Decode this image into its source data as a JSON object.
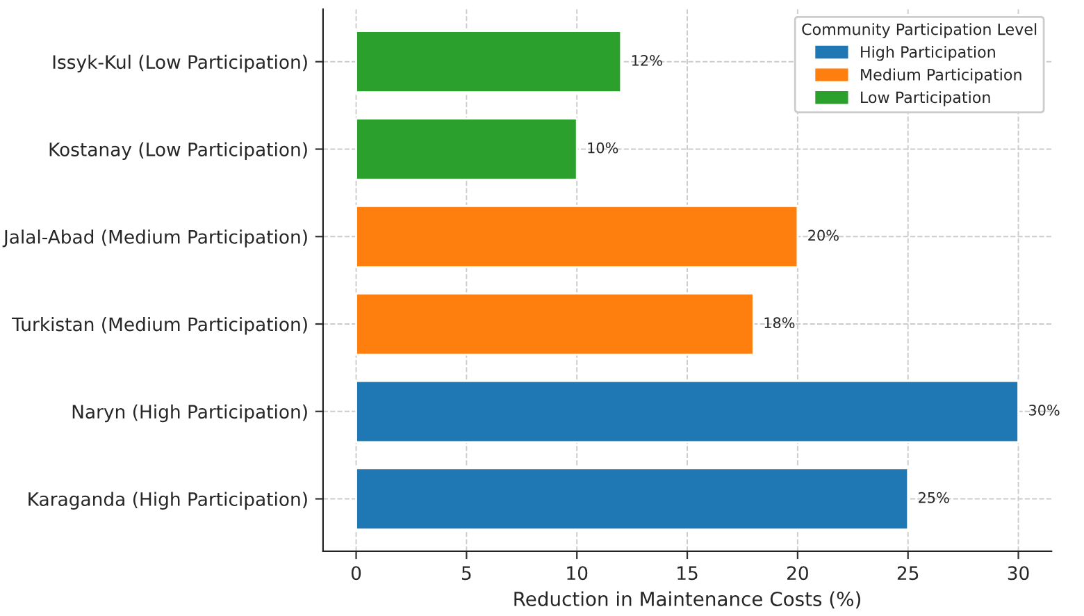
{
  "chart_data": {
    "type": "bar",
    "orientation": "horizontal",
    "categories": [
      "Issyk-Kul (Low Participation)",
      "Kostanay (Low Participation)",
      "Jalal-Abad (Medium Participation)",
      "Turkistan (Medium Participation)",
      "Naryn (High Participation)",
      "Karaganda (High Participation)"
    ],
    "series": [
      {
        "name": "High Participation",
        "color": "#1f77b4",
        "values": [
          null,
          null,
          null,
          null,
          30,
          25
        ],
        "value_labels": [
          null,
          null,
          null,
          null,
          "30%",
          "25%"
        ]
      },
      {
        "name": "Medium Participation",
        "color": "#ff7f0e",
        "values": [
          null,
          null,
          20,
          18,
          null,
          null
        ],
        "value_labels": [
          null,
          null,
          "20%",
          "18%",
          null,
          null
        ]
      },
      {
        "name": "Low Participation",
        "color": "#2ca02c",
        "values": [
          12,
          10,
          null,
          null,
          null,
          null
        ],
        "value_labels": [
          "12%",
          "10%",
          null,
          null,
          null,
          null
        ]
      }
    ],
    "xlabel": "Reduction in Maintenance Costs (%)",
    "legend_title": "Community Participation Level",
    "legend": "top right",
    "xlim": [
      -1.5,
      31.5
    ],
    "xticks": [
      0,
      5,
      10,
      15,
      20,
      25,
      30
    ],
    "grid": true
  }
}
